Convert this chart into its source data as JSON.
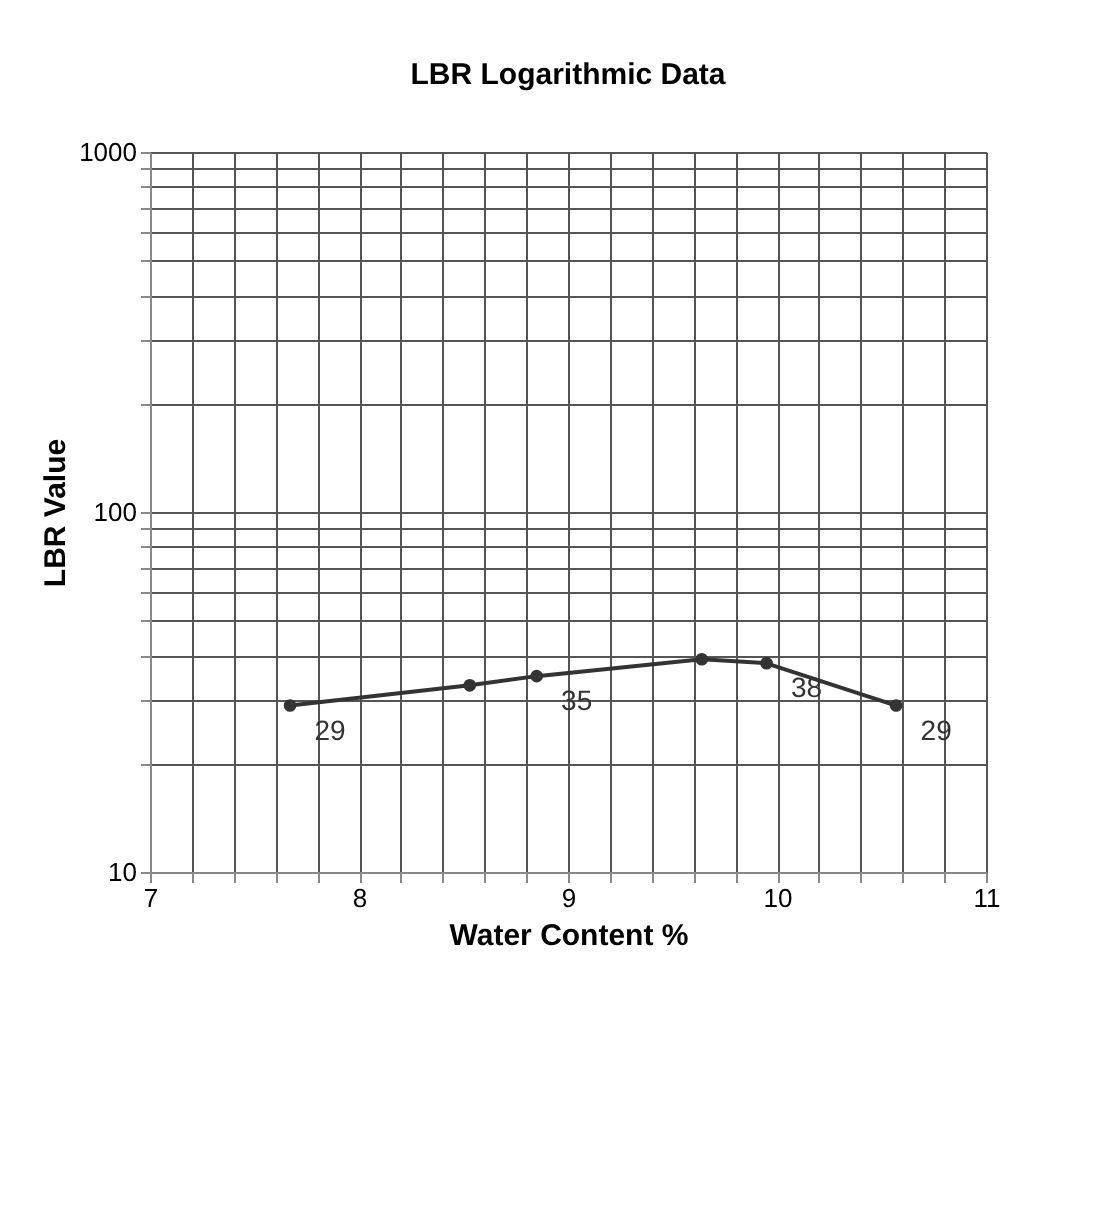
{
  "chart_data": {
    "type": "line",
    "title": "LBR Logarithmic Data",
    "xlabel": "Water Content %",
    "ylabel": "LBR Value",
    "x": [
      7.67,
      8.53,
      8.85,
      9.64,
      9.95,
      10.57
    ],
    "series": [
      {
        "color": "#333333",
        "values": [
          29,
          33,
          35,
          39,
          38,
          29
        ]
      }
    ],
    "xlim": [
      7,
      11
    ],
    "ylim": [
      10,
      1000
    ],
    "log": "y",
    "xticks": [
      7,
      {
        "value": 7.2,
        "label": null
      },
      {
        "value": 7.4,
        "label": null
      },
      {
        "value": 7.6,
        "label": null
      },
      {
        "value": 7.8,
        "label": null
      },
      8,
      {
        "value": 8.2,
        "label": null
      },
      {
        "value": 8.4,
        "label": null
      },
      {
        "value": 8.6,
        "label": null
      },
      {
        "value": 8.8,
        "label": null
      },
      9,
      {
        "value": 9.2,
        "label": null
      },
      {
        "value": 9.4,
        "label": null
      },
      {
        "value": 9.6,
        "label": null
      },
      {
        "value": 9.8,
        "label": null
      },
      10,
      {
        "value": 10.2,
        "label": null
      },
      {
        "value": 10.4,
        "label": null
      },
      {
        "value": 10.6,
        "label": null
      },
      {
        "value": 10.8,
        "label": null
      },
      11
    ],
    "yticks": [
      10,
      {
        "value": 20,
        "label": null
      },
      {
        "value": 30,
        "label": null
      },
      {
        "value": 40,
        "label": null
      },
      {
        "value": 50,
        "label": null
      },
      {
        "value": 60,
        "label": null
      },
      {
        "value": 70,
        "label": null
      },
      {
        "value": 80,
        "label": null
      },
      {
        "value": 90,
        "label": null
      },
      100,
      {
        "value": 200,
        "label": null
      },
      {
        "value": 300,
        "label": null
      },
      {
        "value": 400,
        "label": null
      },
      {
        "value": 500,
        "label": null
      },
      {
        "value": 600,
        "label": null
      },
      {
        "value": 700,
        "label": null
      },
      {
        "value": 800,
        "label": null
      },
      {
        "value": 900,
        "label": null
      },
      1000
    ],
    "grid": true,
    "marker": "circle",
    "line_style": "solid",
    "annotations": [
      {
        "text": "29",
        "x": 7.67,
        "y": 29
      },
      {
        "text": "35",
        "x": 8.85,
        "y": 35
      },
      {
        "text": "38",
        "x": 9.95,
        "y": 38
      },
      {
        "text": "29",
        "x": 10.57,
        "y": 29
      }
    ]
  }
}
